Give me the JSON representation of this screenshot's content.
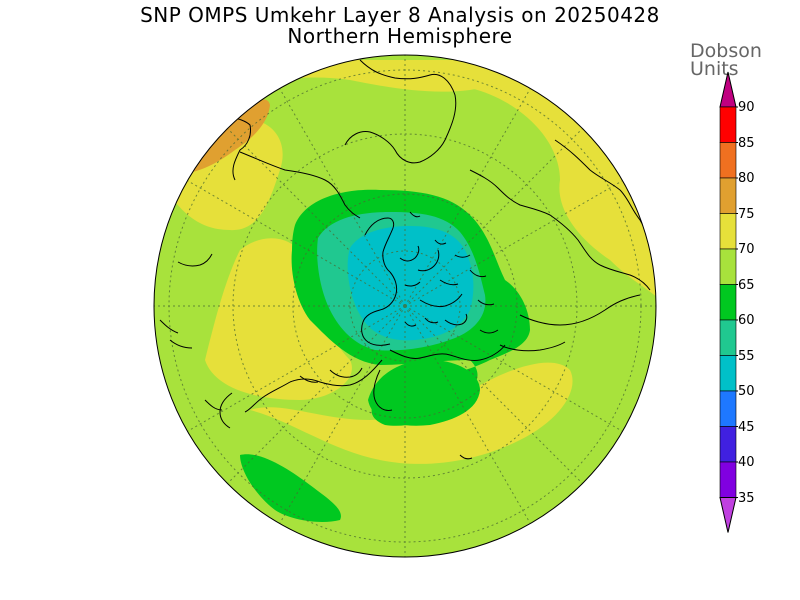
{
  "title": {
    "line1": "SNP OMPS Umkehr Layer 8 Analysis on 20250428",
    "line2": "Northern Hemisphere"
  },
  "colorbar": {
    "units_line1": "Dobson",
    "units_line2": "Units",
    "levels": [
      {
        "value": "90",
        "color": "#c00080"
      },
      {
        "value": "85",
        "color": "#ff0000"
      },
      {
        "value": "80",
        "color": "#f07020"
      },
      {
        "value": "75",
        "color": "#e0a030"
      },
      {
        "value": "70",
        "color": "#e6e03a"
      },
      {
        "value": "65",
        "color": "#a8e23c"
      },
      {
        "value": "60",
        "color": "#00c820"
      },
      {
        "value": "55",
        "color": "#20c890"
      },
      {
        "value": "50",
        "color": "#00c0c8"
      },
      {
        "value": "45",
        "color": "#1e78ff"
      },
      {
        "value": "40",
        "color": "#4020e0"
      },
      {
        "value": "35",
        "color": "#8000e0"
      }
    ],
    "bottom_color": "#c040e0"
  },
  "map": {
    "projection": "polar-stereographic-north",
    "field_colors": {
      "background": "#a8e23c",
      "band_70_75": "#e6e03a",
      "band_75_80": "#e0a030",
      "band_60_65": "#00c820",
      "band_55_60": "#20c890",
      "band_50_55": "#00c0c8"
    }
  }
}
